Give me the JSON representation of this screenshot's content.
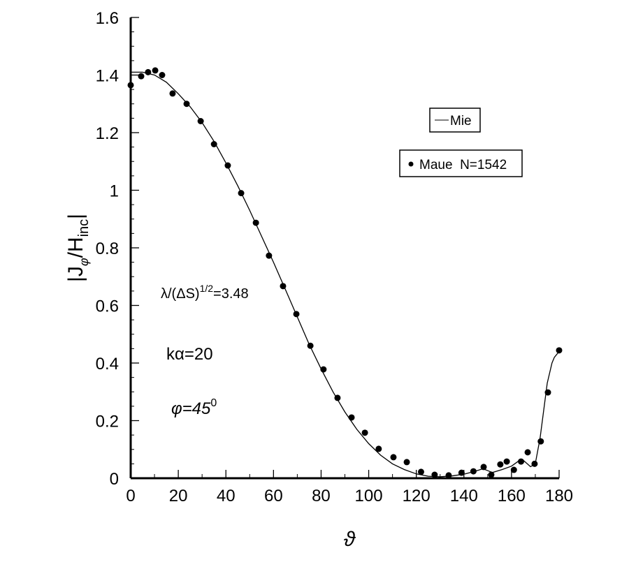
{
  "chart_data": {
    "type": "line",
    "xlabel": "ϑ",
    "ylabel": {
      "prefix": "|J",
      "sub1": "φ",
      "mid": "/H",
      "sub2": "inc",
      "suffix": "|"
    },
    "xlim": [
      0,
      180
    ],
    "ylim": [
      0,
      1.6
    ],
    "xticks": [
      0,
      20,
      40,
      60,
      80,
      100,
      120,
      140,
      160,
      180
    ],
    "yticks": [
      0,
      0.2,
      0.4,
      0.6,
      0.8,
      1,
      1.2,
      1.4,
      1.6
    ],
    "ytick_labels": [
      "0",
      "0.2",
      "0.4",
      "0.6",
      "0.8",
      "1",
      "1.2",
      "1.4",
      "1.6"
    ],
    "grid": false,
    "legend_position": "top-right",
    "series": [
      {
        "name": "Mie",
        "style": "line",
        "x": [
          0,
          5,
          10,
          15,
          20,
          25,
          30,
          35,
          40,
          45,
          50,
          55,
          60,
          65,
          70,
          75,
          80,
          85,
          90,
          95,
          100,
          105,
          110,
          115,
          120,
          125,
          130,
          135,
          140,
          145,
          148,
          152,
          156,
          160,
          163,
          165,
          168,
          170,
          172,
          175,
          177,
          178,
          180
        ],
        "y": [
          1.41,
          1.41,
          1.4,
          1.375,
          1.335,
          1.29,
          1.235,
          1.17,
          1.095,
          1.015,
          0.93,
          0.84,
          0.75,
          0.655,
          0.56,
          0.465,
          0.38,
          0.3,
          0.23,
          0.17,
          0.12,
          0.08,
          0.05,
          0.03,
          0.015,
          0.007,
          0.005,
          0.008,
          0.014,
          0.025,
          0.033,
          0.02,
          0.03,
          0.042,
          0.06,
          0.062,
          0.04,
          0.05,
          0.14,
          0.33,
          0.4,
          0.42,
          0.44
        ]
      },
      {
        "name": "Maue  N=1542",
        "style": "markers",
        "x": [
          0,
          4.4,
          7.3,
          10.3,
          13.2,
          17.6,
          23.5,
          29.4,
          35,
          40.8,
          46.4,
          52.6,
          58.1,
          64,
          69.6,
          75.5,
          81,
          86.9,
          92.8,
          98.4,
          104.2,
          110.4,
          116,
          122,
          127.7,
          133.6,
          139,
          144,
          148.3,
          151.5,
          155.3,
          158,
          161,
          164,
          166.8,
          169.7,
          172.3,
          175.3,
          180
        ],
        "y": [
          1.365,
          1.396,
          1.41,
          1.416,
          1.4,
          1.336,
          1.3,
          1.24,
          1.16,
          1.086,
          0.99,
          0.887,
          0.773,
          0.667,
          0.57,
          0.46,
          0.378,
          0.279,
          0.211,
          0.158,
          0.102,
          0.073,
          0.056,
          0.022,
          0.012,
          0.01,
          0.019,
          0.024,
          0.039,
          0.012,
          0.048,
          0.058,
          0.029,
          0.058,
          0.09,
          0.05,
          0.128,
          0.298,
          0.444
        ]
      }
    ],
    "annotations": {
      "ratio": {
        "main": "λ/(ΔS)",
        "sup": "1/2",
        "tail": "=3.48"
      },
      "ka": "kα=20",
      "phi": {
        "main": "φ=45",
        "sup": "0"
      }
    }
  }
}
